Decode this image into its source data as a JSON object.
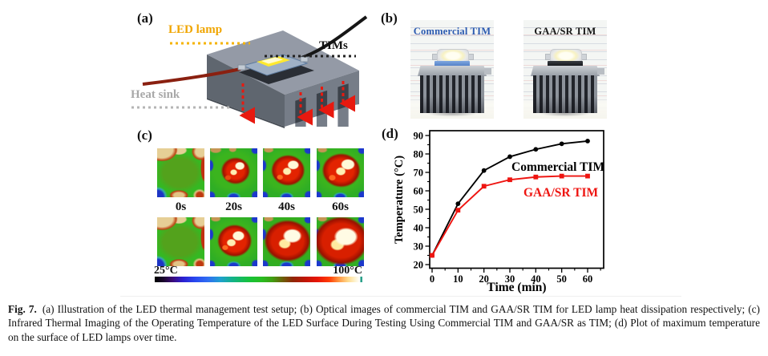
{
  "panel_a": {
    "label": "(a)",
    "led_lamp_label": "LED lamp",
    "tims_label": "TIMs",
    "heat_sink_label": "Heat sink"
  },
  "panel_b": {
    "label": "(b)",
    "left_title": "Commercial TIM",
    "right_title": "GAA/SR TIM",
    "left_title_color": "#2b5ab0",
    "right_title_color": "#161616"
  },
  "panel_c": {
    "label": "(c)",
    "time_labels": [
      "0s",
      "20s",
      "40s",
      "60s"
    ],
    "scale_min": "25°C",
    "scale_max": "100°C"
  },
  "panel_d": {
    "label": "(d)"
  },
  "chart_data": {
    "type": "line",
    "x": [
      0,
      10,
      20,
      30,
      40,
      50,
      60
    ],
    "series": [
      {
        "name": "Commercial TIM",
        "color": "#000000",
        "marker": "circle",
        "values": [
          25,
          53,
          71,
          78.5,
          82.5,
          85.5,
          87
        ]
      },
      {
        "name": "GAA/SR TIM",
        "color": "#ee1410",
        "marker": "square",
        "values": [
          25,
          49.5,
          62.5,
          66,
          67.5,
          68,
          68
        ]
      }
    ],
    "title": "",
    "xlabel": "Time (min)",
    "ylabel": "Temperature (°C)",
    "xticks": [
      0,
      10,
      20,
      30,
      40,
      50,
      60
    ],
    "yticks": [
      20,
      30,
      40,
      50,
      60,
      70,
      80,
      90
    ],
    "xlim": [
      0,
      60
    ],
    "ylim": [
      20,
      90
    ],
    "grid": false,
    "legend_position": "inline-labels"
  },
  "colors": {
    "led_label": "#f0a500",
    "heat_sink_label": "#a8a8a8",
    "arrow_red": "#e8190f",
    "commercial_tim_blue": "#2b5ab0",
    "gaa_sr_red": "#ee1410",
    "colorbar_min": "#000000",
    "colorbar_max": "#ffffff"
  },
  "caption": {
    "fig_label": "Fig. 7.",
    "text": "(a) Illustration of the LED thermal management test setup; (b) Optical images of commercial TIM and GAA/SR TIM for LED lamp heat dissipation respectively; (c) Infrared Thermal Imaging of the Operating Temperature of the LED Surface During Testing Using Commercial TIM and GAA/SR as TIM; (d) Plot of maximum temperature on the surface of LED lamps over time."
  }
}
